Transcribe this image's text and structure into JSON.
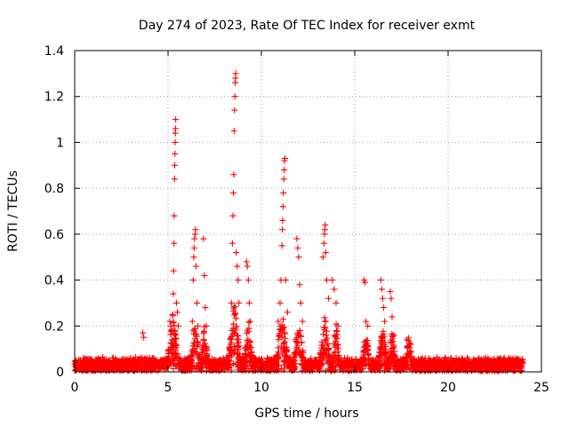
{
  "chart_data": {
    "type": "scatter",
    "title": "Day 274 of 2023, Rate Of TEC Index for receiver exmt",
    "xlabel": "GPS time / hours",
    "ylabel": "ROTI / TECUs",
    "xlim": [
      0,
      25
    ],
    "ylim": [
      0,
      1.4
    ],
    "xticks": [
      "0",
      "5",
      "10",
      "15",
      "20",
      "25"
    ],
    "yticks": [
      "0",
      "0.2",
      "0.4",
      "0.6",
      "0.8",
      "1",
      "1.2",
      "1.4"
    ],
    "grid": true,
    "marker": "plus",
    "color": "#ff0000",
    "series": [
      {
        "points": [
          [
            5.1,
            0.22
          ],
          [
            5.15,
            0.2
          ],
          [
            5.2,
            0.18
          ],
          [
            5.25,
            0.25
          ],
          [
            5.28,
            0.34
          ],
          [
            5.3,
            0.44
          ],
          [
            5.32,
            0.56
          ],
          [
            5.33,
            0.68
          ],
          [
            5.35,
            0.84
          ],
          [
            5.36,
            0.9
          ],
          [
            5.37,
            0.95
          ],
          [
            5.38,
            1.0
          ],
          [
            5.39,
            1.04
          ],
          [
            5.4,
            1.06
          ],
          [
            5.41,
            1.1
          ],
          [
            5.45,
            0.3
          ],
          [
            5.5,
            0.26
          ],
          [
            5.55,
            0.2
          ],
          [
            6.3,
            0.22
          ],
          [
            6.35,
            0.4
          ],
          [
            6.38,
            0.5
          ],
          [
            6.4,
            0.54
          ],
          [
            6.42,
            0.58
          ],
          [
            6.45,
            0.6
          ],
          [
            6.47,
            0.62
          ],
          [
            6.5,
            0.46
          ],
          [
            6.55,
            0.3
          ],
          [
            6.6,
            0.2
          ],
          [
            6.9,
            0.58
          ],
          [
            6.95,
            0.42
          ],
          [
            7.0,
            0.28
          ],
          [
            7.05,
            0.2
          ],
          [
            8.4,
            0.3
          ],
          [
            8.45,
            0.56
          ],
          [
            8.48,
            0.68
          ],
          [
            8.5,
            0.78
          ],
          [
            8.52,
            0.86
          ],
          [
            8.54,
            1.05
          ],
          [
            8.56,
            1.14
          ],
          [
            8.58,
            1.2
          ],
          [
            8.6,
            1.26
          ],
          [
            8.61,
            1.28
          ],
          [
            8.62,
            1.3
          ],
          [
            8.65,
            0.52
          ],
          [
            8.7,
            0.46
          ],
          [
            8.75,
            0.4
          ],
          [
            8.8,
            0.3
          ],
          [
            9.2,
            0.48
          ],
          [
            9.25,
            0.46
          ],
          [
            9.3,
            0.4
          ],
          [
            9.35,
            0.3
          ],
          [
            9.4,
            0.22
          ],
          [
            10.9,
            0.22
          ],
          [
            11.0,
            0.3
          ],
          [
            11.05,
            0.4
          ],
          [
            11.1,
            0.55
          ],
          [
            11.12,
            0.62
          ],
          [
            11.14,
            0.66
          ],
          [
            11.16,
            0.72
          ],
          [
            11.18,
            0.78
          ],
          [
            11.2,
            0.84
          ],
          [
            11.22,
            0.88
          ],
          [
            11.24,
            0.92
          ],
          [
            11.26,
            0.93
          ],
          [
            11.3,
            0.4
          ],
          [
            11.4,
            0.26
          ],
          [
            11.9,
            0.58
          ],
          [
            11.95,
            0.54
          ],
          [
            12.0,
            0.5
          ],
          [
            12.05,
            0.38
          ],
          [
            12.1,
            0.3
          ],
          [
            12.2,
            0.22
          ],
          [
            13.3,
            0.5
          ],
          [
            13.35,
            0.56
          ],
          [
            13.38,
            0.6
          ],
          [
            13.4,
            0.62
          ],
          [
            13.42,
            0.64
          ],
          [
            13.45,
            0.52
          ],
          [
            13.5,
            0.4
          ],
          [
            13.6,
            0.32
          ],
          [
            13.8,
            0.4
          ],
          [
            13.9,
            0.36
          ],
          [
            14.0,
            0.3
          ],
          [
            14.1,
            0.2
          ],
          [
            15.5,
            0.4
          ],
          [
            15.55,
            0.39
          ],
          [
            15.6,
            0.22
          ],
          [
            15.7,
            0.2
          ],
          [
            16.4,
            0.4
          ],
          [
            16.45,
            0.36
          ],
          [
            16.5,
            0.32
          ],
          [
            16.55,
            0.28
          ],
          [
            16.6,
            0.22
          ],
          [
            16.9,
            0.35
          ],
          [
            16.95,
            0.32
          ],
          [
            17.0,
            0.24
          ],
          [
            17.1,
            0.16
          ],
          [
            3.65,
            0.17
          ],
          [
            3.7,
            0.15
          ],
          [
            17.8,
            0.14
          ],
          [
            18.0,
            0.12
          ]
        ]
      }
    ]
  }
}
